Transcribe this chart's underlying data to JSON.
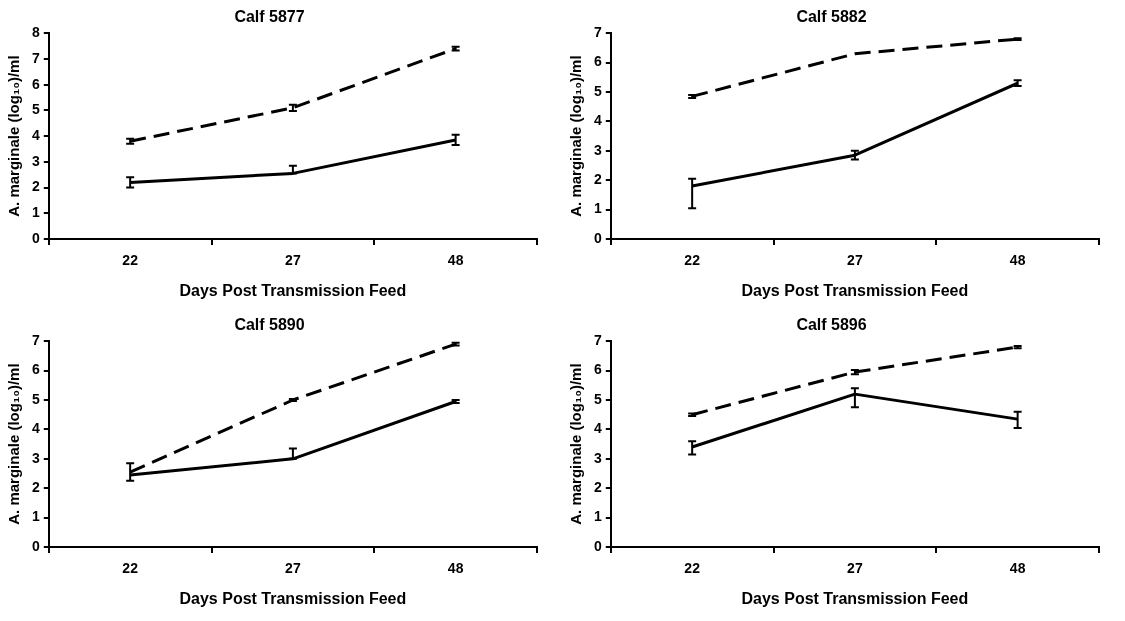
{
  "chart_data": [
    {
      "type": "line",
      "title": "Calf 5877",
      "xlabel": "Days Post Transmission Feed",
      "ylabel": "A. marginale (log₁₀)/ml",
      "categories": [
        "22",
        "27",
        "48"
      ],
      "ylim": [
        0,
        8
      ],
      "yticks": [
        0,
        1,
        2,
        3,
        4,
        5,
        6,
        7,
        8
      ],
      "series": [
        {
          "color": "#000000",
          "line_style": "dashed",
          "values": [
            3.8,
            5.1,
            7.4
          ],
          "errors": [
            0.1,
            0.12,
            0.07
          ]
        },
        {
          "color": "#000000",
          "line_style": "solid",
          "values": [
            2.2,
            2.55,
            3.85
          ],
          "errors": [
            0.2,
            [
              2.55,
              2.85
            ],
            0.2
          ]
        }
      ]
    },
    {
      "type": "line",
      "title": "Calf 5882",
      "xlabel": "Days Post Transmission Feed",
      "ylabel": "A. marginale (log₁₀)/ml",
      "categories": [
        "22",
        "27",
        "48"
      ],
      "ylim": [
        0,
        7
      ],
      "yticks": [
        0,
        1,
        2,
        3,
        4,
        5,
        6,
        7
      ],
      "series": [
        {
          "color": "#000000",
          "line_style": "dashed",
          "values": [
            4.85,
            6.3,
            6.8
          ],
          "errors": [
            0.05,
            null,
            0.03
          ]
        },
        {
          "color": "#000000",
          "line_style": "solid",
          "values": [
            1.8,
            2.85,
            5.3
          ],
          "errors": [
            [
              1.05,
              2.05
            ],
            0.15,
            0.1
          ]
        }
      ]
    },
    {
      "type": "line",
      "title": "Calf 5890",
      "xlabel": "Days Post Transmission Feed",
      "ylabel": "A. marginale (log₁₀)/ml",
      "categories": [
        "22",
        "27",
        "48"
      ],
      "ylim": [
        0,
        7
      ],
      "yticks": [
        0,
        1,
        2,
        3,
        4,
        5,
        6,
        7
      ],
      "series": [
        {
          "color": "#000000",
          "line_style": "dashed",
          "values": [
            2.55,
            5.0,
            6.9
          ],
          "errors": [
            0.3,
            0.03,
            0.05
          ]
        },
        {
          "color": "#000000",
          "line_style": "solid",
          "values": [
            2.45,
            3.0,
            4.95
          ],
          "errors": [
            null,
            [
              3.0,
              3.35
            ],
            0.05
          ]
        }
      ]
    },
    {
      "type": "line",
      "title": "Calf 5896",
      "xlabel": "Days Post Transmission Feed",
      "ylabel": "A. marginale (log₁₀)/ml",
      "categories": [
        "22",
        "27",
        "48"
      ],
      "ylim": [
        0,
        7
      ],
      "yticks": [
        0,
        1,
        2,
        3,
        4,
        5,
        6,
        7
      ],
      "series": [
        {
          "color": "#000000",
          "line_style": "dashed",
          "values": [
            4.5,
            5.95,
            6.8
          ],
          "errors": [
            0.04,
            0.07,
            0.04
          ]
        },
        {
          "color": "#000000",
          "line_style": "solid",
          "values": [
            3.4,
            5.2,
            4.35
          ],
          "errors": [
            [
              3.15,
              3.6
            ],
            [
              4.75,
              5.4
            ],
            [
              4.05,
              4.6
            ]
          ]
        }
      ]
    }
  ]
}
